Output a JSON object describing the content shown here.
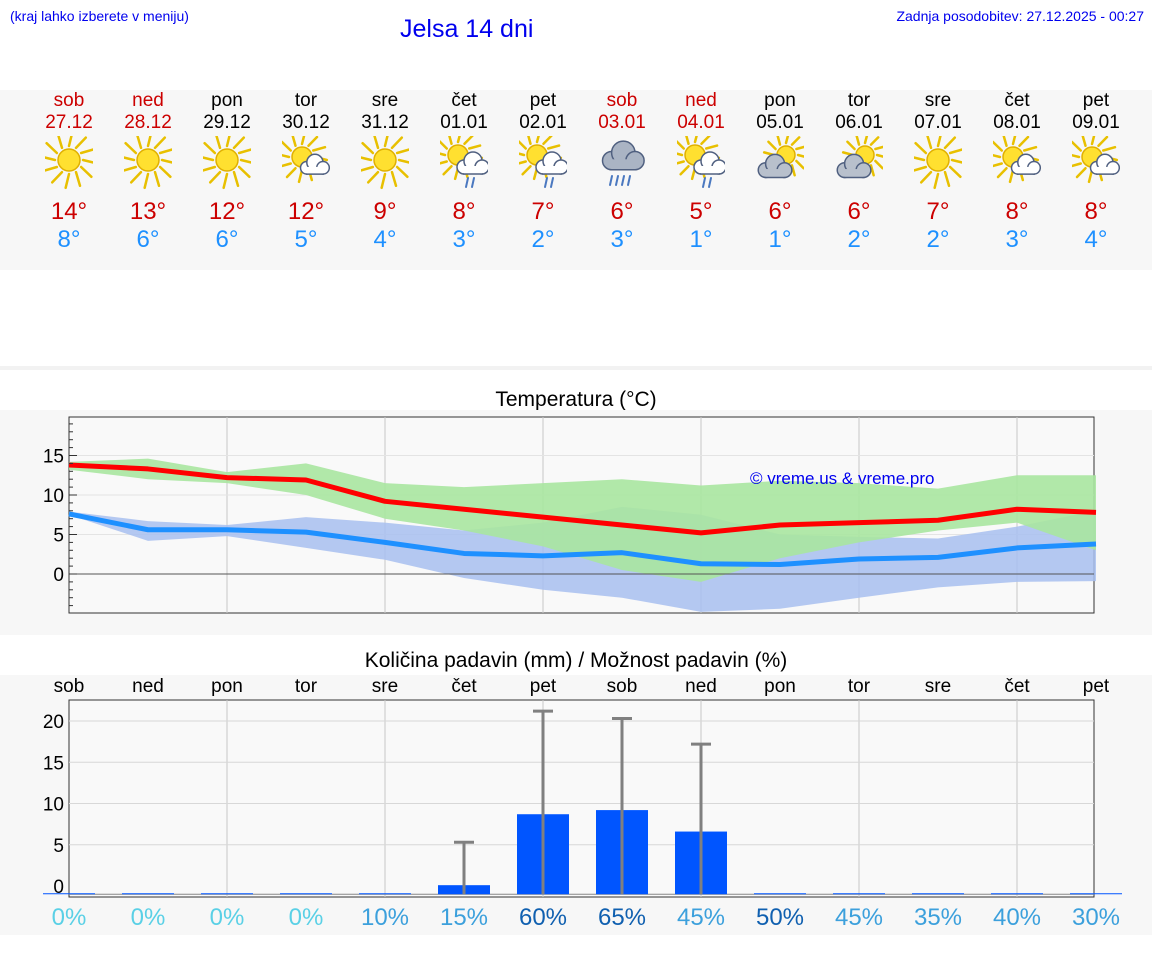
{
  "header": {
    "hint": "(kraj lahko izberete v meniju)",
    "title": "Jelsa 14 dni",
    "updated": "Zadnja posodobitev: 27.12.2025 - 00:27"
  },
  "colors": {
    "max_temp": "#cc0000",
    "min_temp": "#1e90ff",
    "max_line": "#ff0000",
    "min_line": "#1e90ff",
    "max_band": "#a8e6a0",
    "min_band": "#a8c0f0",
    "precip_bar": "#0055ff",
    "error_bar": "#808080"
  },
  "days": [
    {
      "name": "sob",
      "date": "27.12",
      "weekend": true,
      "icon": "sun-icon",
      "max": "14°",
      "min": "8°",
      "pct": "0%",
      "pct_color": "#5ad0e6"
    },
    {
      "name": "ned",
      "date": "28.12",
      "weekend": true,
      "icon": "sun-icon",
      "max": "13°",
      "min": "6°",
      "pct": "0%",
      "pct_color": "#5ad0e6"
    },
    {
      "name": "pon",
      "date": "29.12",
      "weekend": false,
      "icon": "sun-icon",
      "max": "12°",
      "min": "6°",
      "pct": "0%",
      "pct_color": "#5ad0e6"
    },
    {
      "name": "tor",
      "date": "30.12",
      "weekend": false,
      "icon": "sun-cloud-icon",
      "max": "12°",
      "min": "5°",
      "pct": "0%",
      "pct_color": "#5ad0e6"
    },
    {
      "name": "sre",
      "date": "31.12",
      "weekend": false,
      "icon": "sun-icon",
      "max": "9°",
      "min": "4°",
      "pct": "10%",
      "pct_color": "#3ca0dc"
    },
    {
      "name": "čet",
      "date": "01.01",
      "weekend": false,
      "icon": "sun-cloud-rain-icon",
      "max": "8°",
      "min": "3°",
      "pct": "15%",
      "pct_color": "#3ca0dc"
    },
    {
      "name": "pet",
      "date": "02.01",
      "weekend": false,
      "icon": "sun-cloud-rain-icon",
      "max": "7°",
      "min": "2°",
      "pct": "60%",
      "pct_color": "#1060b0"
    },
    {
      "name": "sob",
      "date": "03.01",
      "weekend": true,
      "icon": "cloud-rain-icon",
      "max": "6°",
      "min": "3°",
      "pct": "65%",
      "pct_color": "#1060b0"
    },
    {
      "name": "ned",
      "date": "04.01",
      "weekend": true,
      "icon": "sun-cloud-rain-icon",
      "max": "5°",
      "min": "1°",
      "pct": "45%",
      "pct_color": "#3ca0dc"
    },
    {
      "name": "pon",
      "date": "05.01",
      "weekend": false,
      "icon": "cloud-sun-icon",
      "max": "6°",
      "min": "1°",
      "pct": "50%",
      "pct_color": "#1060b0"
    },
    {
      "name": "tor",
      "date": "06.01",
      "weekend": false,
      "icon": "cloud-sun-icon",
      "max": "6°",
      "min": "2°",
      "pct": "45%",
      "pct_color": "#3ca0dc"
    },
    {
      "name": "sre",
      "date": "07.01",
      "weekend": false,
      "icon": "sun-icon",
      "max": "7°",
      "min": "2°",
      "pct": "35%",
      "pct_color": "#3ca0dc"
    },
    {
      "name": "čet",
      "date": "08.01",
      "weekend": false,
      "icon": "sun-cloud-icon",
      "max": "8°",
      "min": "3°",
      "pct": "40%",
      "pct_color": "#3ca0dc"
    },
    {
      "name": "pet",
      "date": "09.01",
      "weekend": false,
      "icon": "sun-cloud-icon",
      "max": "8°",
      "min": "4°",
      "pct": "30%",
      "pct_color": "#3ca0dc"
    }
  ],
  "chart_data": [
    {
      "type": "line",
      "title": "Temperatura (°C)",
      "watermark": "© vreme.us & vreme.pro",
      "ylim": [
        -5,
        20
      ],
      "yticks": [
        0,
        5,
        10,
        15
      ],
      "x": [
        1,
        2,
        3,
        4,
        5,
        6,
        7,
        8,
        9,
        10,
        11,
        12,
        13,
        14
      ],
      "series": [
        {
          "name": "max",
          "values": [
            13.8,
            13.3,
            12.2,
            11.9,
            9.2,
            8.2,
            7.2,
            6.2,
            5.2,
            6.2,
            6.5,
            6.8,
            8.2,
            7.8
          ]
        },
        {
          "name": "min",
          "values": [
            7.6,
            5.6,
            5.6,
            5.3,
            4.0,
            2.6,
            2.3,
            2.7,
            1.3,
            1.2,
            1.9,
            2.1,
            3.3,
            3.8
          ]
        }
      ],
      "bands": [
        {
          "name": "max_range",
          "low": [
            13.2,
            12.0,
            11.5,
            10.0,
            7.0,
            5.5,
            3.5,
            0.5,
            -1.0,
            2.0,
            4.0,
            5.5,
            6.5,
            3.0
          ],
          "high": [
            14.2,
            14.6,
            12.9,
            14.0,
            11.5,
            11.0,
            11.5,
            12.0,
            11.2,
            11.8,
            11.5,
            10.8,
            12.5,
            12.5
          ]
        },
        {
          "name": "min_range",
          "low": [
            7.5,
            4.2,
            4.8,
            3.3,
            1.8,
            -0.5,
            -2.0,
            -3.0,
            -4.8,
            -4.4,
            -3.0,
            -1.7,
            -1.0,
            -0.9
          ],
          "high": [
            7.9,
            6.7,
            6.2,
            7.2,
            6.5,
            5.5,
            6.5,
            8.5,
            7.5,
            5.0,
            4.7,
            4.5,
            6.0,
            8.0
          ]
        }
      ]
    },
    {
      "type": "bar",
      "title": "Količina padavin (mm) / Možnost padavin (%)",
      "ylim": [
        -1,
        23
      ],
      "yticks": [
        0,
        5,
        10,
        15,
        20
      ],
      "categories": [
        "sob",
        "ned",
        "pon",
        "tor",
        "sre",
        "čet",
        "pet",
        "sob",
        "ned",
        "pon",
        "tor",
        "sre",
        "čet",
        "pet"
      ],
      "values": [
        0,
        0,
        0,
        0,
        0,
        0.1,
        8.7,
        9.2,
        6.6,
        0,
        0,
        0,
        0,
        0
      ],
      "error_high": [
        0,
        0,
        0,
        0,
        0,
        5.3,
        21.2,
        20.3,
        17.2,
        0,
        0,
        0,
        0,
        0
      ],
      "probability": [
        "0%",
        "0%",
        "0%",
        "0%",
        "10%",
        "15%",
        "60%",
        "65%",
        "45%",
        "50%",
        "45%",
        "35%",
        "40%",
        "30%"
      ]
    }
  ]
}
